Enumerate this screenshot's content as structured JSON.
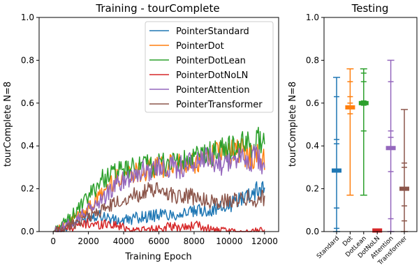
{
  "chart_data": [
    {
      "type": "line",
      "title": "Training - tourComplete",
      "xlabel": "Training Epoch",
      "ylabel": "tourComplete N=8",
      "xlim": [
        -800,
        12800
      ],
      "ylim": [
        0,
        1
      ],
      "xticks": [
        0,
        2000,
        4000,
        6000,
        8000,
        10000,
        12000
      ],
      "xtick_labels": [
        "0",
        "2000",
        "4000",
        "6000",
        "8000",
        "10000",
        "12000"
      ],
      "yticks": [
        0.0,
        0.2,
        0.4,
        0.6,
        0.8,
        1.0
      ],
      "ytick_labels": [
        "0.0",
        "0.2",
        "0.4",
        "0.6",
        "0.8",
        "1.0"
      ],
      "grid": false,
      "legend_position": "upper right",
      "series": [
        {
          "name": "PointerStandard",
          "color": "#1f77b4",
          "x": [
            0,
            500,
            1000,
            1500,
            2000,
            2500,
            3000,
            3500,
            4000,
            4500,
            5000,
            5500,
            6000,
            6500,
            7000,
            7500,
            8000,
            8500,
            9000,
            9500,
            10000,
            10500,
            11000,
            11500,
            12000
          ],
          "y": [
            0.0,
            0.01,
            0.03,
            0.05,
            0.07,
            0.08,
            0.07,
            0.05,
            0.05,
            0.06,
            0.07,
            0.07,
            0.08,
            0.08,
            0.08,
            0.09,
            0.09,
            0.1,
            0.1,
            0.11,
            0.12,
            0.15,
            0.17,
            0.19,
            0.21
          ]
        },
        {
          "name": "PointerDot",
          "color": "#ff7f0e",
          "x": [
            0,
            500,
            1000,
            1500,
            2000,
            2500,
            3000,
            3500,
            4000,
            4500,
            5000,
            5500,
            6000,
            6500,
            7000,
            7500,
            8000,
            8500,
            9000,
            9500,
            10000,
            10500,
            11000,
            11500,
            12000
          ],
          "y": [
            0.0,
            0.02,
            0.05,
            0.08,
            0.11,
            0.15,
            0.2,
            0.24,
            0.27,
            0.28,
            0.28,
            0.29,
            0.3,
            0.3,
            0.31,
            0.3,
            0.32,
            0.34,
            0.36,
            0.37,
            0.37,
            0.38,
            0.36,
            0.35,
            0.33
          ]
        },
        {
          "name": "PointerDotLean",
          "color": "#2ca02c",
          "x": [
            0,
            500,
            1000,
            1500,
            2000,
            2500,
            3000,
            3500,
            4000,
            4500,
            5000,
            5500,
            6000,
            6500,
            7000,
            7500,
            8000,
            8500,
            9000,
            9500,
            10000,
            10500,
            11000,
            11500,
            12000
          ],
          "y": [
            0.0,
            0.03,
            0.07,
            0.11,
            0.16,
            0.22,
            0.26,
            0.27,
            0.28,
            0.29,
            0.3,
            0.31,
            0.31,
            0.32,
            0.33,
            0.32,
            0.34,
            0.36,
            0.36,
            0.38,
            0.39,
            0.39,
            0.41,
            0.42,
            0.43
          ]
        },
        {
          "name": "PointerDotNoLN",
          "color": "#d62728",
          "x": [
            0,
            500,
            1000,
            1500,
            2000,
            2500,
            3000,
            3500,
            4000,
            4500,
            5000,
            5500,
            6000,
            6500,
            7000,
            7500,
            8000,
            8500,
            9000,
            9500,
            10000,
            10500,
            11000,
            11500,
            12000
          ],
          "y": [
            0.0,
            0.01,
            0.02,
            0.03,
            0.04,
            0.03,
            0.04,
            0.03,
            0.02,
            0.01,
            0.005,
            0.01,
            0.02,
            0.02,
            0.02,
            0.02,
            0.03,
            0.02,
            0.01,
            0.0,
            0.0,
            0.0,
            0.0,
            0.0,
            0.0
          ]
        },
        {
          "name": "PointerAttention",
          "color": "#9467bd",
          "x": [
            0,
            500,
            1000,
            1500,
            2000,
            2500,
            3000,
            3500,
            4000,
            4500,
            5000,
            5500,
            6000,
            6500,
            7000,
            7500,
            8000,
            8500,
            9000,
            9500,
            10000,
            10500,
            11000,
            11500,
            12000
          ],
          "y": [
            0.0,
            0.02,
            0.04,
            0.07,
            0.1,
            0.13,
            0.17,
            0.21,
            0.24,
            0.27,
            0.28,
            0.29,
            0.3,
            0.31,
            0.3,
            0.31,
            0.32,
            0.33,
            0.34,
            0.32,
            0.33,
            0.34,
            0.33,
            0.35,
            0.3
          ]
        },
        {
          "name": "PointerTransformer",
          "color": "#8c564b",
          "x": [
            0,
            500,
            1000,
            1500,
            2000,
            2500,
            3000,
            3500,
            4000,
            4500,
            5000,
            5500,
            6000,
            6500,
            7000,
            7500,
            8000,
            8500,
            9000,
            9500,
            10000,
            10500,
            11000,
            11500,
            12000
          ],
          "y": [
            0.0,
            0.01,
            0.03,
            0.05,
            0.07,
            0.09,
            0.11,
            0.13,
            0.15,
            0.17,
            0.18,
            0.19,
            0.19,
            0.18,
            0.17,
            0.17,
            0.16,
            0.15,
            0.14,
            0.14,
            0.14,
            0.15,
            0.16,
            0.15,
            0.16
          ]
        }
      ]
    },
    {
      "type": "errorbar",
      "title": "Testing",
      "ylabel": "tourComplete N=8",
      "ylim": [
        0,
        1
      ],
      "yticks": [
        0.0,
        0.2,
        0.4,
        0.6,
        0.8,
        1.0
      ],
      "ytick_labels": [
        "0.0",
        "0.2",
        "0.4",
        "0.6",
        "0.8",
        "1.0"
      ],
      "grid": false,
      "categories": [
        "Standard",
        "Dot",
        "DotLean",
        "DotNoLN",
        "Attention",
        "Transformer"
      ],
      "series": [
        {
          "category": "Standard",
          "color": "#1f77b4",
          "mean": 0.285,
          "min": 0.0,
          "max": 0.72,
          "extra_ticks": [
            0.015,
            0.11,
            0.41,
            0.43,
            0.63
          ]
        },
        {
          "category": "Dot",
          "color": "#ff7f0e",
          "mean": 0.58,
          "min": 0.17,
          "max": 0.76,
          "extra_ticks": [
            0.55,
            0.6,
            0.63,
            0.7
          ]
        },
        {
          "category": "DotLean",
          "color": "#2ca02c",
          "mean": 0.6,
          "min": 0.17,
          "max": 0.76,
          "extra_ticks": [
            0.47,
            0.59,
            0.61,
            0.7,
            0.74
          ]
        },
        {
          "category": "DotNoLN",
          "color": "#d62728",
          "mean": 0.005,
          "min": 0.0,
          "max": 0.01,
          "extra_ticks": []
        },
        {
          "category": "Attention",
          "color": "#9467bd",
          "mean": 0.39,
          "min": 0.0,
          "max": 0.8,
          "extra_ticks": [
            0.06,
            0.28,
            0.44,
            0.47,
            0.7
          ]
        },
        {
          "category": "Transformer",
          "color": "#8c564b",
          "mean": 0.2,
          "min": 0.0,
          "max": 0.57,
          "extra_ticks": [
            0.05,
            0.12,
            0.3,
            0.32
          ]
        }
      ]
    }
  ]
}
